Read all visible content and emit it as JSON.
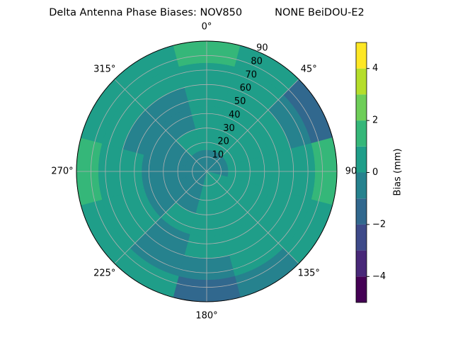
{
  "chart_data": {
    "type": "polar_contour",
    "title": "Delta Antenna Phase Biases: NOV850          NONE BeiDOU-E2",
    "azimuth": [
      0,
      30,
      60,
      90,
      120,
      150,
      180,
      210,
      240,
      270,
      300,
      330
    ],
    "zenith_bins": [
      0,
      15,
      30,
      45,
      60,
      75,
      90
    ],
    "z": [
      [
        -0.5,
        0.5,
        0.5,
        0.5,
        0.5,
        1.5
      ],
      [
        -0.5,
        0.5,
        0.5,
        0.5,
        0.5,
        0.5
      ],
      [
        -0.5,
        0.5,
        0.5,
        0.5,
        -0.5,
        -1.5
      ],
      [
        -0.5,
        0.5,
        0.5,
        0.5,
        0.5,
        1.5
      ],
      [
        0.5,
        0.5,
        0.5,
        0.5,
        0.5,
        0.5
      ],
      [
        0.5,
        0.5,
        0.5,
        0.5,
        0.5,
        -0.5
      ],
      [
        0.5,
        0.5,
        0.5,
        0.5,
        -0.5,
        -1.5
      ],
      [
        -0.5,
        -0.5,
        0.5,
        -0.5,
        -0.5,
        0.5
      ],
      [
        -0.5,
        -0.5,
        -0.5,
        0.5,
        0.5,
        0.5
      ],
      [
        -0.5,
        -0.5,
        -0.5,
        0.5,
        0.5,
        1.5
      ],
      [
        -0.5,
        -0.5,
        -0.5,
        -0.5,
        0.5,
        0.5
      ],
      [
        -0.5,
        0.5,
        -0.5,
        -0.5,
        0.5,
        0.5
      ]
    ],
    "levels": [
      -5,
      -4,
      -3,
      -2,
      -1,
      0,
      1,
      2,
      3,
      4,
      5
    ],
    "colors": [
      "#440154",
      "#482878",
      "#3e4a89",
      "#31688e",
      "#26828e",
      "#1f9e89",
      "#35b779",
      "#6ece58",
      "#b5de2b",
      "#fde725"
    ],
    "rlim": [
      0,
      90
    ],
    "rticks": [
      10,
      20,
      30,
      40,
      50,
      60,
      70,
      80,
      90
    ],
    "thetaticks": [
      {
        "value": 0,
        "label": "0°"
      },
      {
        "value": 45,
        "label": "45°"
      },
      {
        "value": 90,
        "label": "90"
      },
      {
        "value": 135,
        "label": "135°"
      },
      {
        "value": 180,
        "label": "180°"
      },
      {
        "value": 225,
        "label": "225°"
      },
      {
        "value": 270,
        "label": "270°"
      },
      {
        "value": 315,
        "label": "315°"
      }
    ],
    "colorbar_label": "Bias (mm)",
    "clim": [
      -5,
      5
    ],
    "cticks": [
      {
        "value": -4,
        "label": "−4"
      },
      {
        "value": -2,
        "label": "−2"
      },
      0,
      2,
      4
    ],
    "grid": true
  }
}
